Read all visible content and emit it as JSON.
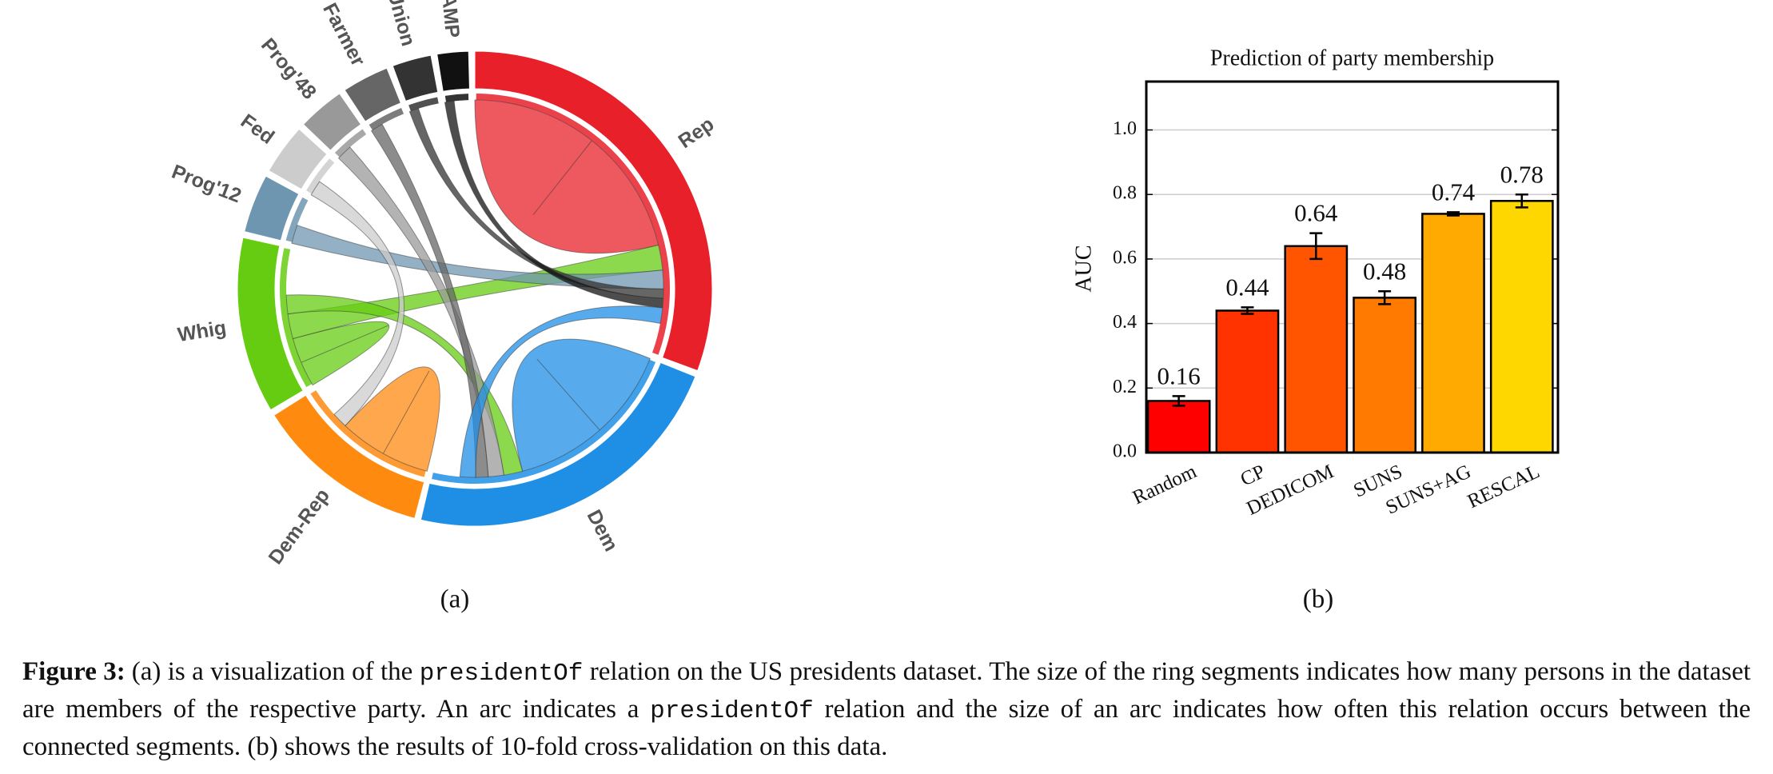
{
  "chart_data": [
    {
      "type": "chord",
      "segments": [
        {
          "name": "Rep",
          "color": "#e8202a",
          "value": 115
        },
        {
          "name": "Dem",
          "color": "#1f8fe6",
          "value": 85
        },
        {
          "name": "Dem-Rep",
          "color": "#ff8a10",
          "value": 45
        },
        {
          "name": "Whig",
          "color": "#66cc11",
          "value": 45
        },
        {
          "name": "Prog'12",
          "color": "#6f96b0",
          "value": 15
        },
        {
          "name": "Fed",
          "color": "#cccccc",
          "value": 13
        },
        {
          "name": "Prog'48",
          "color": "#999999",
          "value": 12
        },
        {
          "name": "Farmer",
          "color": "#666666",
          "value": 12
        },
        {
          "name": "Union",
          "color": "#333333",
          "value": 10
        },
        {
          "name": "AMP",
          "color": "#111111",
          "value": 8
        }
      ],
      "chords": [
        {
          "source": "Rep",
          "target": "Rep",
          "value": 40
        },
        {
          "source": "Dem",
          "target": "Dem",
          "value": 28
        },
        {
          "source": "Dem-Rep",
          "target": "Dem-Rep",
          "value": 15
        },
        {
          "source": "Whig",
          "target": "Whig",
          "value": 8
        },
        {
          "source": "Whig",
          "target": "Rep",
          "value": 8
        },
        {
          "source": "Whig",
          "target": "Dem",
          "value": 6
        },
        {
          "source": "Prog'12",
          "target": "Rep",
          "value": 6
        },
        {
          "source": "Fed",
          "target": "Dem-Rep",
          "value": 5
        },
        {
          "source": "Prog'48",
          "target": "Dem",
          "value": 5
        },
        {
          "source": "Farmer",
          "target": "Dem",
          "value": 4
        },
        {
          "source": "Union",
          "target": "Rep",
          "value": 3
        },
        {
          "source": "AMP",
          "target": "Rep",
          "value": 3
        },
        {
          "source": "Dem",
          "target": "Rep",
          "value": 5
        }
      ]
    },
    {
      "type": "bar",
      "title": "Prediction of party membership",
      "y_label": "AUC",
      "categories": [
        "Random",
        "CP",
        "DEDICOM",
        "SUNS",
        "SUNS+AG",
        "RESCAL"
      ],
      "values": [
        0.16,
        0.44,
        0.64,
        0.48,
        0.74,
        0.78
      ],
      "errors": [
        0.015,
        0.01,
        0.04,
        0.02,
        0.005,
        0.02
      ],
      "colors": [
        "#ff0000",
        "#ff3300",
        "#ff5500",
        "#ff7a00",
        "#ffaa00",
        "#ffd700"
      ],
      "ylim": [
        0,
        1.15
      ],
      "yticks": [
        {
          "value": 0,
          "label": "0.0"
        },
        0.2,
        0.4,
        0.6,
        0.8,
        {
          "value": 1,
          "label": "1.0"
        }
      ],
      "grid": true
    }
  ],
  "subcaptions": [
    "(a)",
    "(b)"
  ],
  "caption": {
    "label": "Figure 3:",
    "parts": [
      "(a) is a visualization of the ",
      "presidentOf",
      " relation on the US presidents dataset. The size of the ring segments indicates how many persons in the dataset are members of the respective party. An arc indicates a ",
      "presidentOf",
      " relation and the size of an arc indicates how often this relation occurs between the connected segments. (b) shows the results of 10-fold cross-validation on this data."
    ]
  }
}
